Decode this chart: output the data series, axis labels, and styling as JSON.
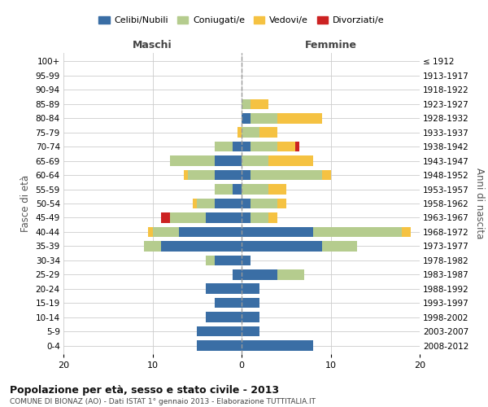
{
  "age_groups": [
    "0-4",
    "5-9",
    "10-14",
    "15-19",
    "20-24",
    "25-29",
    "30-34",
    "35-39",
    "40-44",
    "45-49",
    "50-54",
    "55-59",
    "60-64",
    "65-69",
    "70-74",
    "75-79",
    "80-84",
    "85-89",
    "90-94",
    "95-99",
    "100+"
  ],
  "year_labels": [
    "2008-2012",
    "2003-2007",
    "1998-2002",
    "1993-1997",
    "1988-1992",
    "1983-1987",
    "1978-1982",
    "1973-1977",
    "1968-1972",
    "1963-1967",
    "1958-1962",
    "1953-1957",
    "1948-1952",
    "1943-1947",
    "1938-1942",
    "1933-1937",
    "1928-1932",
    "1923-1927",
    "1918-1922",
    "1913-1917",
    "≤ 1912"
  ],
  "colors": {
    "celibi": "#3a6ea5",
    "coniugati": "#b5cc8e",
    "vedovi": "#f5c242",
    "divorziati": "#cc2222"
  },
  "maschi": {
    "celibi": [
      5,
      5,
      4,
      3,
      4,
      1,
      3,
      9,
      7,
      4,
      3,
      1,
      3,
      3,
      1,
      0,
      0,
      0,
      0,
      0,
      0
    ],
    "coniugati": [
      0,
      0,
      0,
      0,
      0,
      0,
      1,
      2,
      3,
      4,
      2,
      2,
      3,
      5,
      2,
      0,
      0,
      0,
      0,
      0,
      0
    ],
    "vedovi": [
      0,
      0,
      0,
      0,
      0,
      0,
      0,
      0,
      0.5,
      0,
      0.5,
      0,
      0.5,
      0,
      0,
      0.5,
      0,
      0,
      0,
      0,
      0
    ],
    "divorziati": [
      0,
      0,
      0,
      0,
      0,
      0,
      0,
      0,
      0,
      1,
      0,
      0,
      0,
      0,
      0,
      0,
      0,
      0,
      0,
      0,
      0
    ]
  },
  "femmine": {
    "celibi": [
      8,
      2,
      2,
      2,
      2,
      4,
      1,
      9,
      8,
      1,
      1,
      0,
      1,
      0,
      1,
      0,
      1,
      0,
      0,
      0,
      0
    ],
    "coniugati": [
      0,
      0,
      0,
      0,
      0,
      3,
      0,
      4,
      10,
      2,
      3,
      3,
      8,
      3,
      3,
      2,
      3,
      1,
      0,
      0,
      0
    ],
    "vedovi": [
      0,
      0,
      0,
      0,
      0,
      0,
      0,
      0,
      1,
      1,
      1,
      2,
      1,
      5,
      2,
      2,
      5,
      2,
      0,
      0,
      0
    ],
    "divorziati": [
      0,
      0,
      0,
      0,
      0,
      0,
      0,
      0,
      0,
      0,
      0,
      0,
      0,
      0,
      0.5,
      0,
      0,
      0,
      0,
      0,
      0
    ]
  },
  "title": "Popolazione per età, sesso e stato civile - 2013",
  "subtitle": "COMUNE DI BIONAZ (AO) - Dati ISTAT 1° gennaio 2013 - Elaborazione TUTTITALIA.IT",
  "ylabel_left": "Fasce di età",
  "ylabel_right": "Anni di nascita",
  "xlim": 20,
  "legend_labels": [
    "Celibi/Nubili",
    "Coniugati/e",
    "Vedovi/e",
    "Divorziati/e"
  ],
  "maschi_label": "Maschi",
  "femmine_label": "Femmine",
  "background_color": "#ffffff",
  "grid_color": "#cccccc"
}
